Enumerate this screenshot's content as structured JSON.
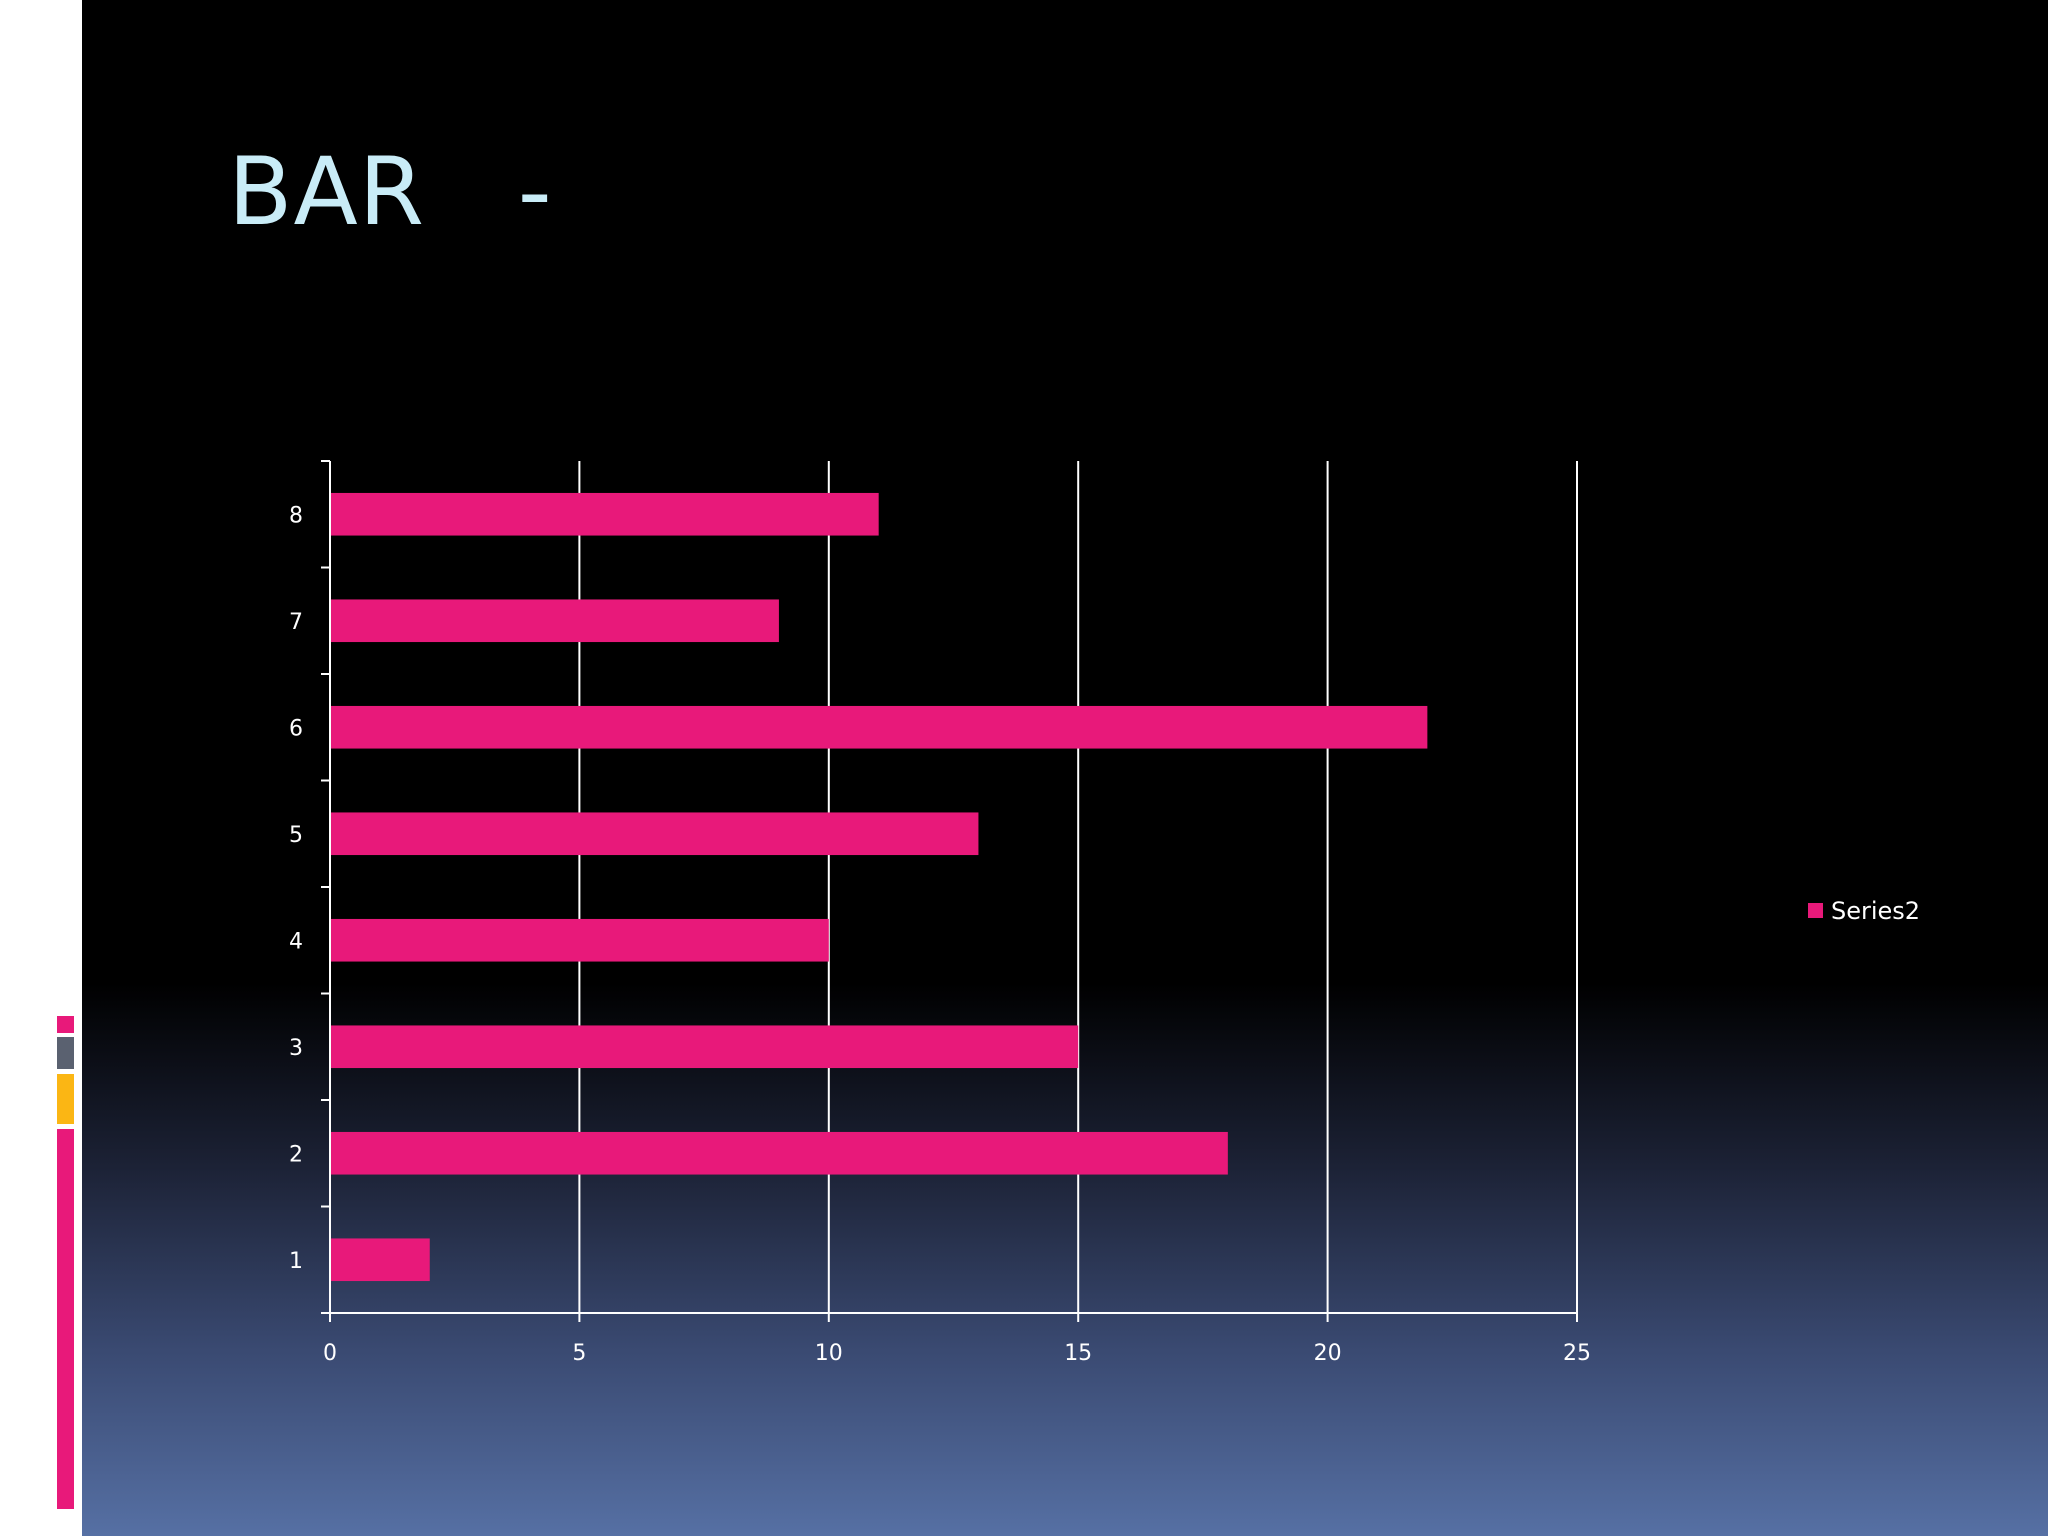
{
  "slide": {
    "title": "BAR   -",
    "colors": {
      "title": "#c9ecf7",
      "bar": "#e8197a",
      "accent_gray": "#5a6170",
      "accent_yellow": "#fbb614"
    }
  },
  "chart_data": {
    "type": "bar",
    "orientation": "horizontal",
    "categories": [
      "1",
      "2",
      "3",
      "4",
      "5",
      "6",
      "7",
      "8"
    ],
    "series": [
      {
        "name": "Series2",
        "values": [
          2,
          18,
          15,
          10,
          13,
          22,
          9,
          11
        ],
        "color": "#e8197a"
      }
    ],
    "xlim": [
      0,
      25
    ],
    "x_ticks": [
      "0",
      "5",
      "10",
      "15",
      "20",
      "25"
    ],
    "grid": true,
    "legend_position": "right"
  }
}
